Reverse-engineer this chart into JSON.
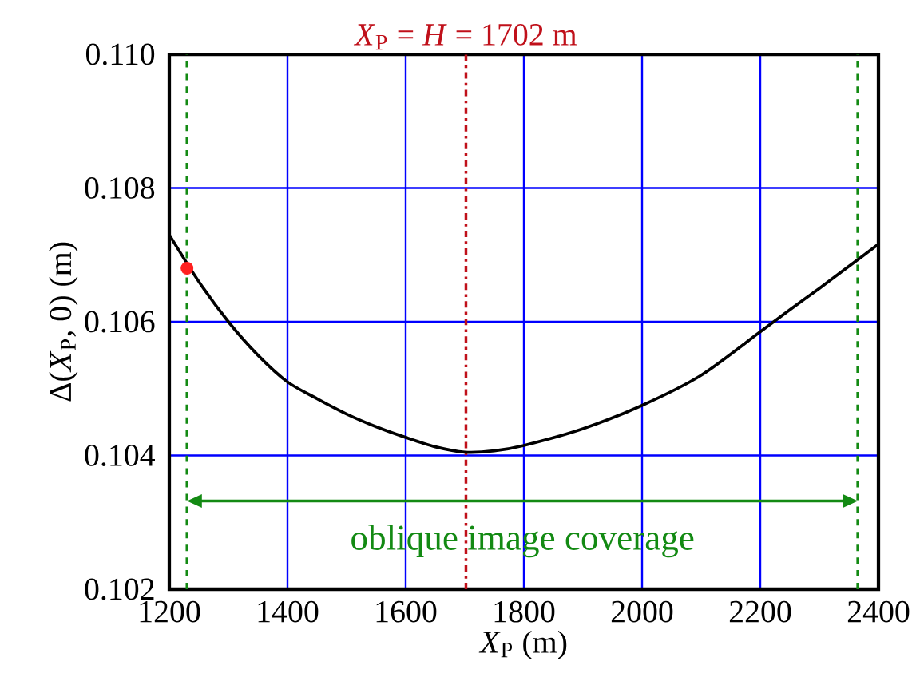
{
  "chart_data": {
    "type": "line",
    "xlabel": "*X*$_{P}$  (m)",
    "ylabel": "Δ(*X*$_{P}$, 0)  (m)",
    "xlim": [
      1200,
      2400
    ],
    "ylim": [
      0.102,
      0.11
    ],
    "xticks": [
      1200,
      1400,
      1600,
      1800,
      2000,
      2200,
      2400
    ],
    "yticks": [
      {
        "value": 0.102,
        "label": "0.102"
      },
      {
        "value": 0.104,
        "label": "0.104"
      },
      {
        "value": 0.106,
        "label": "0.106"
      },
      {
        "value": 0.108,
        "label": "0.108"
      },
      {
        "value": 0.11,
        "label": "0.110"
      }
    ],
    "grid": true,
    "series": [
      {
        "color": "#000000",
        "x": [
          1200,
          1250,
          1300,
          1350,
          1400,
          1450,
          1500,
          1550,
          1600,
          1650,
          1700,
          1750,
          1800,
          1900,
          2000,
          2100,
          2200,
          2250,
          2300,
          2350,
          2400
        ],
        "values": [
          0.1073,
          0.1066,
          0.106,
          0.1055,
          0.1051,
          0.10485,
          0.10462,
          0.10443,
          0.10427,
          0.10413,
          0.10405,
          0.10407,
          0.10415,
          0.1044,
          0.10475,
          0.1052,
          0.10585,
          0.10618,
          0.1065,
          0.10683,
          0.10716
        ]
      },
      {
        "type": "scatter",
        "marker": "circle",
        "color": "#ff2020",
        "x": [
          1230
        ],
        "values": [
          0.1068
        ]
      }
    ],
    "ref_lines": [
      {
        "axis": "x",
        "value": 1702,
        "label": "*X*$_{P}$ = *H* = 1702 m",
        "color": "#c0101a",
        "line_style": "dashdot"
      },
      {
        "axis": "x",
        "value": 1230,
        "color": "#138a13",
        "line_style": "dashed"
      },
      {
        "axis": "x",
        "value": 2365,
        "color": "#138a13",
        "line_style": "dashed"
      }
    ],
    "annotations": [
      "oblique image coverage"
    ]
  }
}
